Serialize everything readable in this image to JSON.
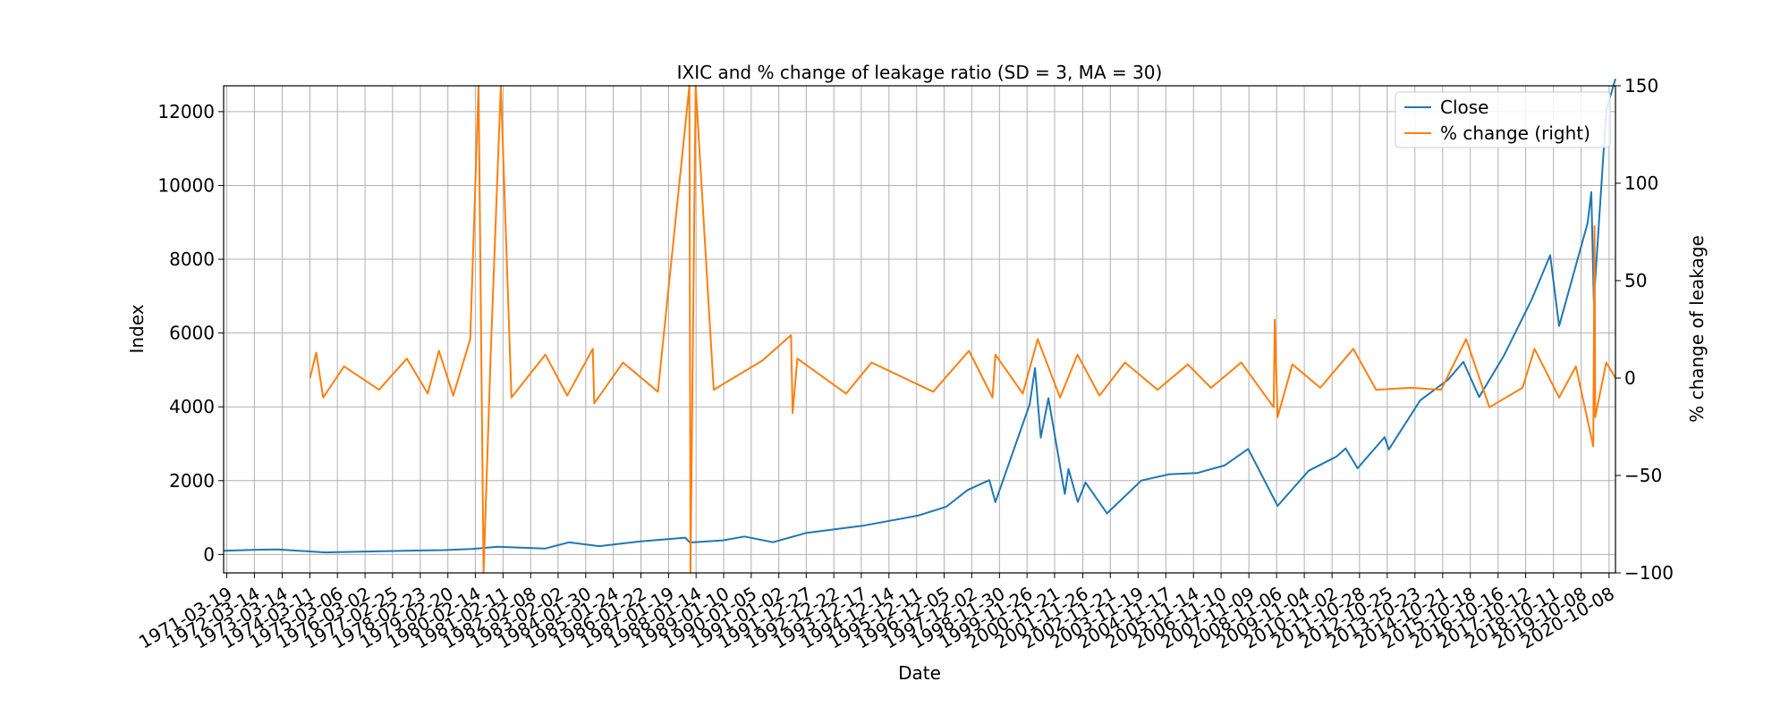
{
  "chart_data": {
    "type": "line",
    "title": "IXIC and % change of leakage ratio (SD = 3, MA = 30)",
    "xlabel": "Date",
    "ylabel": "Index",
    "ylabel_right": "% change of leakage",
    "x_range": [
      "1971-02-05",
      "2020-12-31"
    ],
    "ylim": [
      -500,
      12700
    ],
    "ylim_right": [
      -100,
      150
    ],
    "y_ticks": [
      0,
      2000,
      4000,
      6000,
      8000,
      10000,
      12000
    ],
    "y_ticks_right": [
      -100,
      -50,
      0,
      50,
      100,
      150
    ],
    "x_tick_labels": [
      "1971-03-19",
      "1972-03-14",
      "1973-03-14",
      "1974-03-11",
      "1975-03-06",
      "1976-03-02",
      "1977-02-25",
      "1978-02-23",
      "1979-02-20",
      "1980-02-14",
      "1981-02-11",
      "1982-02-08",
      "1983-02-02",
      "1984-01-30",
      "1985-01-24",
      "1986-01-22",
      "1987-01-19",
      "1988-01-14",
      "1989-01-10",
      "1990-01-05",
      "1991-01-02",
      "1991-12-27",
      "1992-12-22",
      "1993-12-17",
      "1994-12-14",
      "1995-12-11",
      "1996-12-05",
      "1997-12-02",
      "1998-11-30",
      "1999-11-26",
      "2000-11-21",
      "2001-11-26",
      "2002-11-21",
      "2003-11-19",
      "2004-11-17",
      "2005-11-14",
      "2006-11-10",
      "2007-11-09",
      "2008-11-06",
      "2009-11-04",
      "2010-11-02",
      "2011-10-28",
      "2012-10-25",
      "2013-10-23",
      "2014-10-21",
      "2015-10-18",
      "2016-10-16",
      "2017-10-12",
      "2018-10-11",
      "2019-10-08",
      "2020-10-08"
    ],
    "grid": true,
    "legend_position": "top-right",
    "series": [
      {
        "name": "Close",
        "axis": "left",
        "color": "#1f77b4",
        "x": [
          "1971-02-05",
          "1972-06-01",
          "1973-01-10",
          "1974-10-03",
          "1976-01-01",
          "1978-01-01",
          "1979-01-01",
          "1980-01-01",
          "1980-11-28",
          "1982-08-13",
          "1983-06-24",
          "1984-07-25",
          "1986-01-01",
          "1987-08-26",
          "1987-10-26",
          "1988-12-30",
          "1989-10-09",
          "1990-10-16",
          "1991-12-31",
          "1993-12-31",
          "1995-12-29",
          "1996-12-31",
          "1997-10-09",
          "1998-07-20",
          "1998-10-08",
          "1999-12-31",
          "2000-03-10",
          "2000-05-24",
          "2000-09-01",
          "2001-04-04",
          "2001-05-22",
          "2001-09-21",
          "2001-12-31",
          "2002-10-09",
          "2003-12-31",
          "2004-12-31",
          "2005-12-30",
          "2006-12-29",
          "2007-10-31",
          "2008-11-20",
          "2009-12-31",
          "2010-12-31",
          "2011-04-29",
          "2011-10-03",
          "2012-09-21",
          "2012-11-15",
          "2013-12-31",
          "2014-12-31",
          "2015-07-20",
          "2016-02-11",
          "2016-12-30",
          "2017-12-29",
          "2018-08-29",
          "2018-12-24",
          "2019-12-31",
          "2020-02-19",
          "2020-03-23",
          "2020-09-02",
          "2020-12-31"
        ],
        "values": [
          100,
          130,
          136,
          55,
          77,
          105,
          117,
          150,
          208,
          159,
          328,
          225,
          349,
          455,
          323,
          381,
          485,
          330,
          586,
          777,
          1052,
          1291,
          1745,
          2014,
          1419,
          4069,
          5048,
          3164,
          4234,
          1638,
          2314,
          1423,
          1950,
          1114,
          2003,
          2175,
          2205,
          2415,
          2859,
          1316,
          2269,
          2653,
          2873,
          2335,
          3179,
          2846,
          4177,
          4736,
          5219,
          4266,
          5383,
          6903,
          8109,
          6193,
          8973,
          9817,
          6860,
          12056,
          12888
        ]
      },
      {
        "name": "% change (right)",
        "axis": "right",
        "color": "#ff7f0e",
        "x": [
          "1974-03-11",
          "1974-06-01",
          "1974-09-01",
          "1975-06-01",
          "1976-09-01",
          "1977-09-01",
          "1978-06-01",
          "1978-10-26",
          "1979-05-01",
          "1979-10-10",
          "1979-12-10",
          "1980-03-27",
          "1980-06-01",
          "1980-09-01",
          "1981-01-13",
          "1981-06-01",
          "1982-08-20",
          "1983-06-01",
          "1984-05-01",
          "1984-05-20",
          "1985-06-01",
          "1986-09-01",
          "1987-10-19",
          "1987-11-01",
          "1988-01-08",
          "1988-09-01",
          "1990-06-01",
          "1991-06-10",
          "1991-07-01",
          "1991-09-01",
          "1993-06-01",
          "1994-05-01",
          "1996-07-15",
          "1997-10-27",
          "1998-08-31",
          "1998-10-08",
          "1999-10-01",
          "2000-04-14",
          "2001-02-01",
          "2001-09-17",
          "2002-07-01",
          "2003-06-01",
          "2004-08-01",
          "2005-09-01",
          "2006-07-01",
          "2007-08-01",
          "2008-09-29",
          "2008-10-13",
          "2008-11-20",
          "2009-06-01",
          "2010-06-01",
          "2011-08-08",
          "2012-06-01",
          "2013-09-01",
          "2014-10-01",
          "2015-08-24",
          "2016-06-24",
          "2017-09-01",
          "2018-02-05",
          "2018-12-24",
          "2019-08-01",
          "2020-03-16",
          "2020-04-01",
          "2020-04-10",
          "2020-09-01",
          "2020-12-31"
        ],
        "values": [
          0,
          13,
          -10,
          6,
          -6,
          10,
          -8,
          14,
          -9,
          12,
          20,
          150,
          -100,
          10,
          150,
          -10,
          12,
          -9,
          15,
          -13,
          8,
          -7,
          150,
          -100,
          150,
          -6,
          9,
          22,
          -18,
          10,
          -8,
          8,
          -7,
          14,
          -10,
          12,
          -8,
          20,
          -10,
          12,
          -9,
          8,
          -6,
          7,
          -5,
          8,
          -15,
          30,
          -20,
          7,
          -5,
          15,
          -6,
          -5,
          -6,
          20,
          -15,
          -5,
          15,
          -10,
          6,
          -35,
          78,
          -20,
          8,
          0
        ]
      }
    ]
  }
}
